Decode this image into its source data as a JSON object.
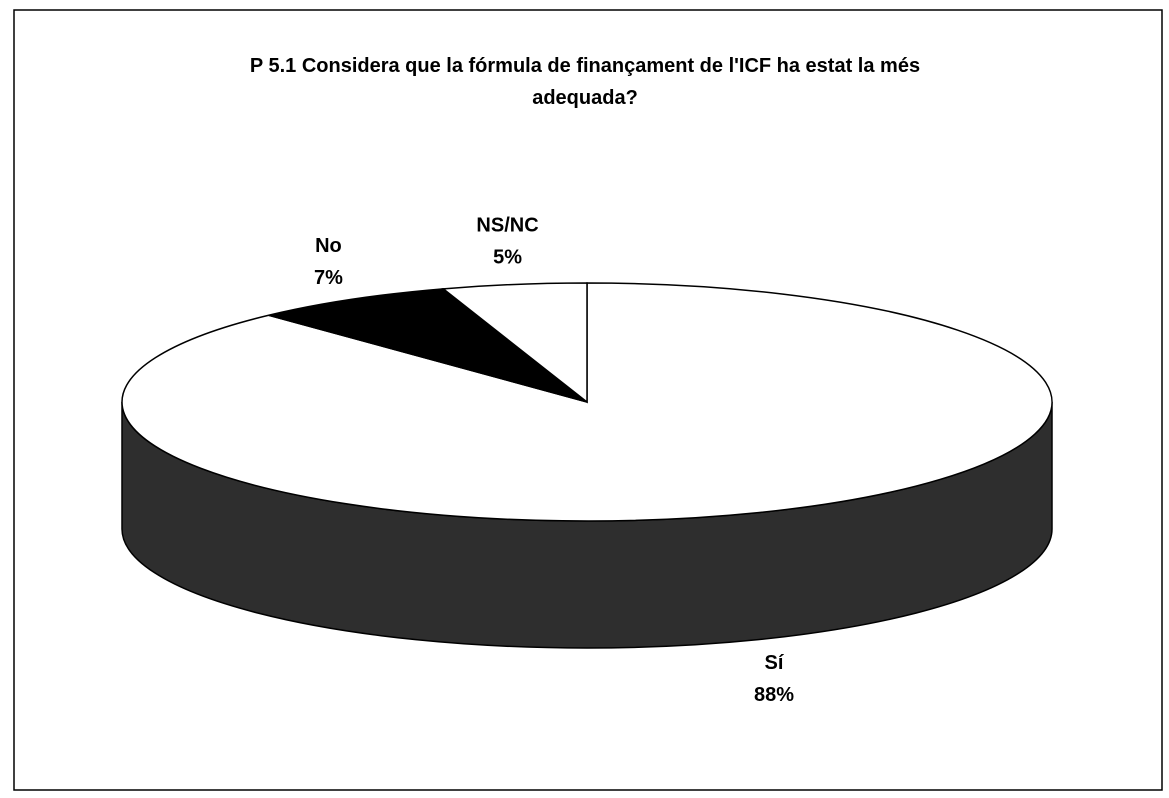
{
  "chart_data": {
    "type": "pie3d",
    "title": "P 5.1 Considera que la fórmula de finançament de l'ICF ha estat la més adequada?",
    "categories": [
      "Sí",
      "No",
      "NS/NC"
    ],
    "values": [
      88,
      7,
      5
    ],
    "value_labels": [
      "88%",
      "7%",
      "5%"
    ],
    "colors": [
      "#ffffff",
      "#000000",
      "#ffffff"
    ]
  }
}
